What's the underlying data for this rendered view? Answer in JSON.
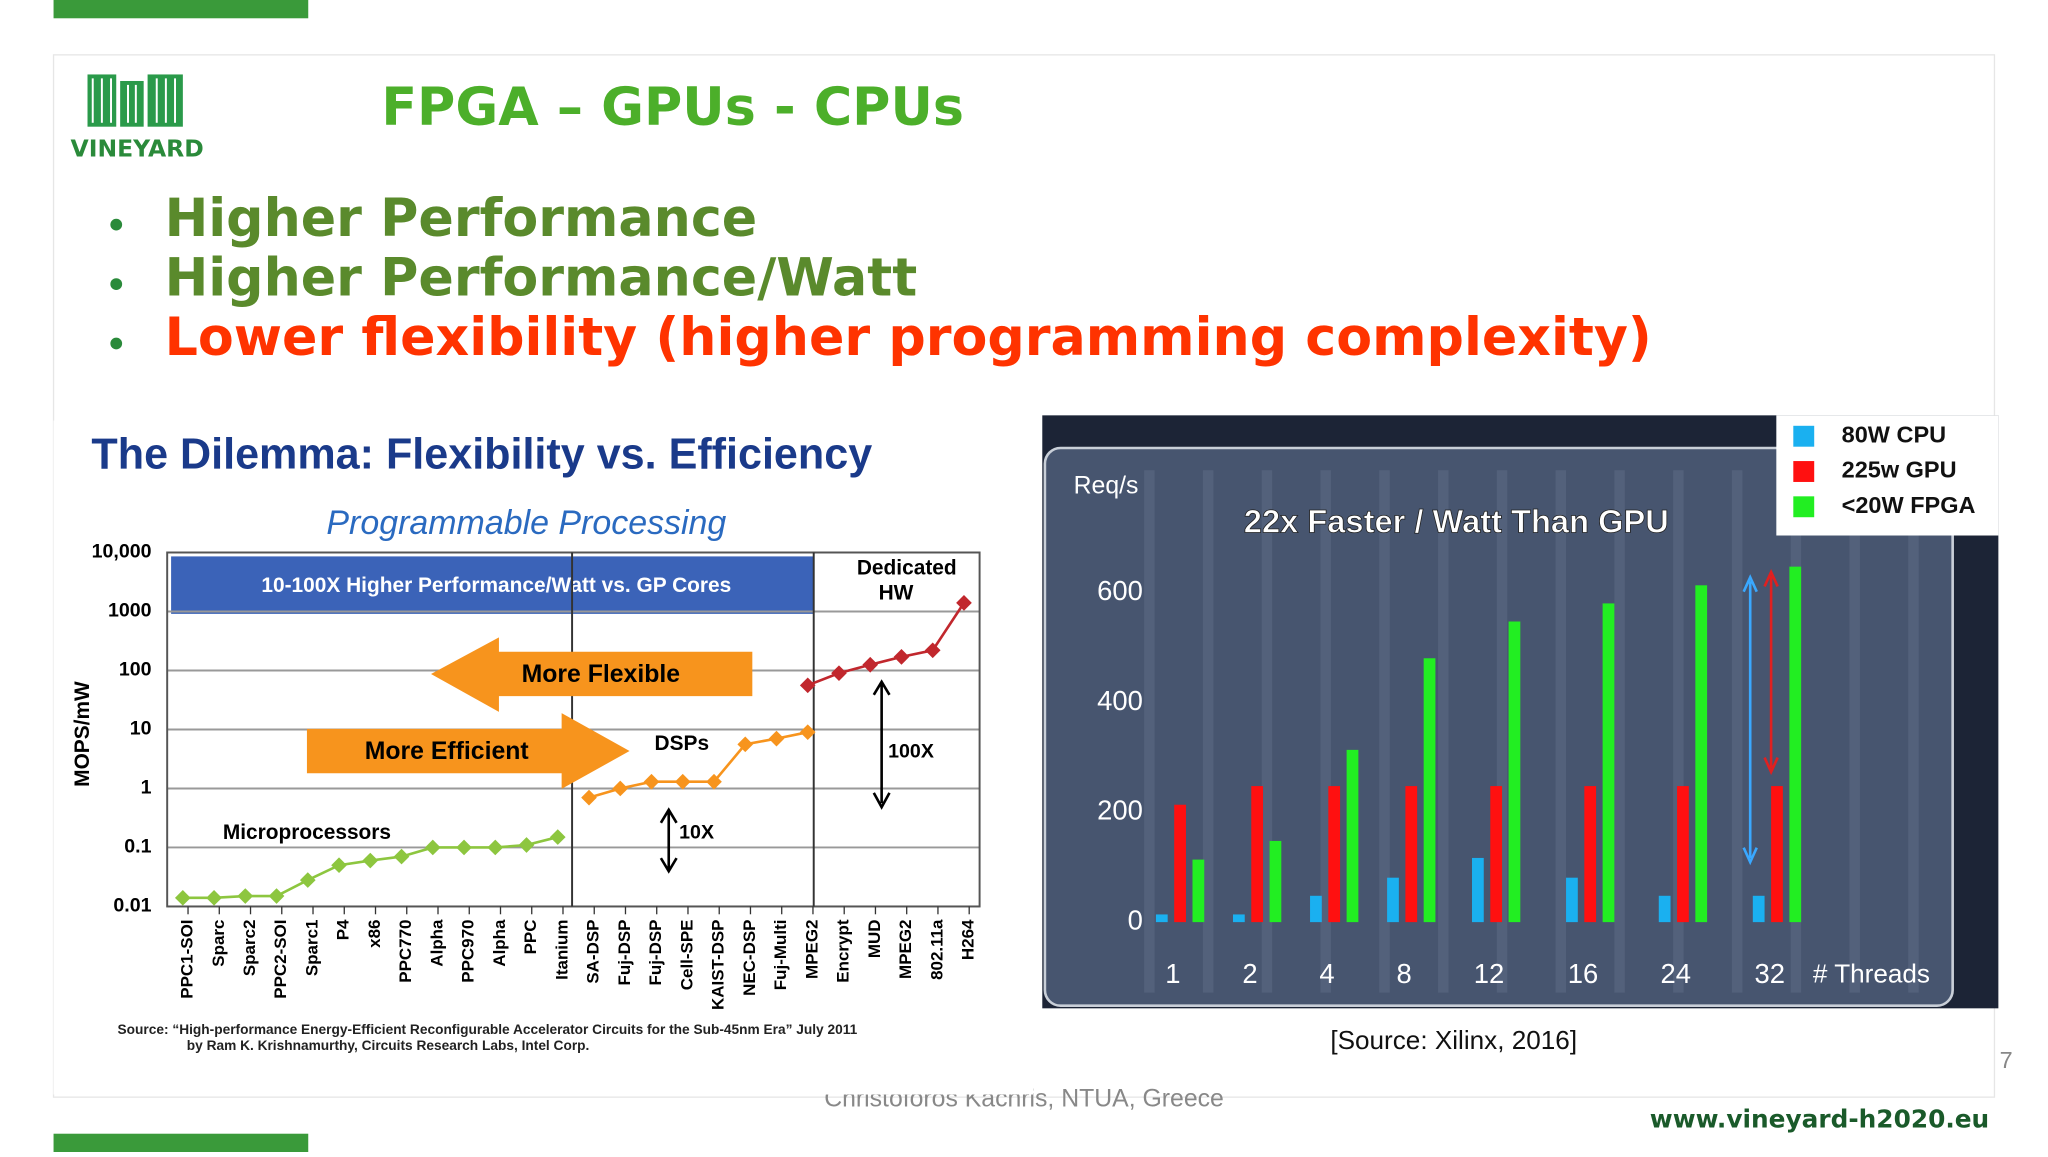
{
  "slide": {
    "logo": "VINEYARD",
    "title": "FPGA – GPUs - CPUs",
    "bullets": [
      "Higher Performance",
      "Higher Performance/Watt",
      "Lower flexibility (higher programming complexity)"
    ],
    "footer": "Christoforos Kachris, NTUA, Greece",
    "website": "www.vineyard-h2020.eu",
    "page_number": "7"
  },
  "chart_data": [
    {
      "type": "line",
      "title": "The Dilemma:  Flexibility vs. Efficiency",
      "subtitle": "Programmable Processing",
      "y_label": "MOPS/mW",
      "log_scale": true,
      "grid": true,
      "ylim": [
        0.01,
        10000
      ],
      "yticks": [
        0.01,
        0.1,
        1,
        10,
        100,
        1000,
        {
          "value": 10000,
          "label": "10,000"
        }
      ],
      "categories": [
        "PPC1-SOI",
        "Sparc",
        "Sparc2",
        "PPC2-SOI",
        "Sparc1",
        "P4",
        "x86",
        "PPC770",
        "Alpha",
        "PPC970",
        "Alpha",
        "PPC",
        "Itanium",
        "SA-DSP",
        "Fuj-DSP",
        "Fuj-DSP",
        "Cell-SPE",
        "KAIST-DSP",
        "NEC-DSP",
        "Fuj-Multi",
        "MPEG2",
        "Encrypt",
        "MUD",
        "MPEG2",
        "802.11a",
        "H264"
      ],
      "series": [
        {
          "name": "Microprocessors",
          "color": "#8dc63f",
          "values": [
            0.014,
            0.014,
            0.015,
            0.015,
            0.028,
            0.05,
            0.06,
            0.07,
            0.1,
            0.1,
            0.1,
            0.11,
            0.15,
            null,
            null,
            null,
            null,
            null,
            null,
            null,
            null,
            null,
            null,
            null,
            null,
            null
          ]
        },
        {
          "name": "DSPs",
          "color": "#f7941d",
          "values": [
            null,
            null,
            null,
            null,
            null,
            null,
            null,
            null,
            null,
            null,
            null,
            null,
            null,
            0.7,
            1,
            1.3,
            1.3,
            1.3,
            5.6,
            7,
            9,
            null,
            null,
            null,
            null,
            null
          ]
        },
        {
          "name": "Dedicated HW",
          "color": "#c1272d",
          "values": [
            null,
            null,
            null,
            null,
            null,
            null,
            null,
            null,
            null,
            null,
            null,
            null,
            null,
            null,
            null,
            null,
            null,
            null,
            null,
            null,
            56,
            90,
            125,
            170,
            220,
            1400
          ]
        }
      ],
      "annotations": [
        "10-100X Higher Performance/Watt vs. GP Cores",
        "More Flexible",
        "More Efficient",
        "100X",
        "10X"
      ],
      "source": [
        "Source:  “High-performance Energy-Efficient Reconfigurable Accelerator Circuits for the Sub-45nm Era”  July 2011",
        "by Ram K. Krishnamurthy, Circuits Research Labs, Intel Corp."
      ]
    },
    {
      "type": "bar",
      "title": "22x Faster / Watt Than GPU",
      "y_label": "Req/s",
      "x_label": "# Threads",
      "ylim": [
        0,
        700
      ],
      "yticks": [
        0,
        200,
        400,
        600
      ],
      "legend": "top-right",
      "categories": [
        "1",
        "2",
        "4",
        "8",
        "12",
        "16",
        "24",
        "32"
      ],
      "series": [
        {
          "name": "80W CPU",
          "color": "#1ab0f0",
          "values": [
            14,
            14,
            48,
            81,
            117,
            81,
            48,
            48
          ]
        },
        {
          "name": "225w GPU",
          "color": "#ff1010",
          "values": [
            214,
            248,
            248,
            248,
            248,
            248,
            248,
            248
          ]
        },
        {
          "name": "<20W FPGA",
          "color": "#22ee22",
          "values": [
            114,
            148,
            314,
            481,
            548,
            581,
            614,
            648
          ]
        }
      ],
      "source": "[Source: Xilinx, 2016]"
    }
  ]
}
